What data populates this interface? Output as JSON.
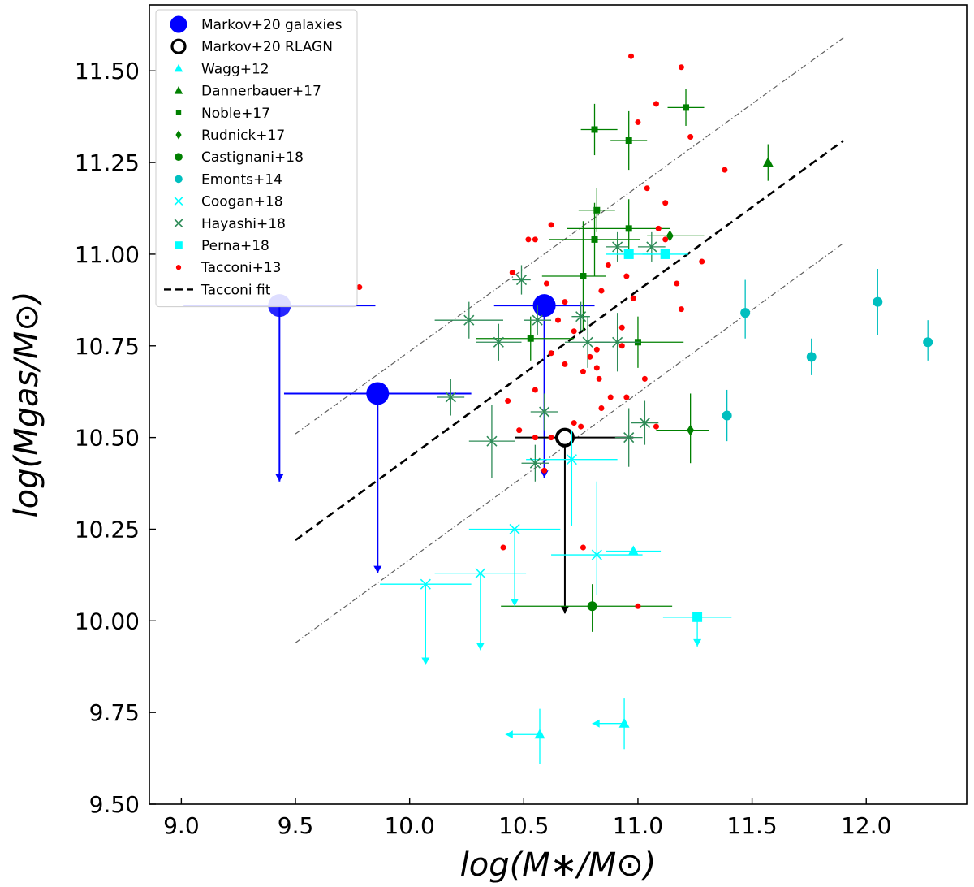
{
  "chart_data": {
    "type": "scatter",
    "xlabel": "log(M∗/M⊙)",
    "ylabel": "log(Mgas/M⊙)",
    "xlim": [
      8.86,
      12.44
    ],
    "ylim": [
      9.5,
      11.68
    ],
    "xticks": [
      9.0,
      9.5,
      10.0,
      10.5,
      11.0,
      11.5,
      12.0
    ],
    "xtick_labels": [
      "9.0",
      "9.5",
      "10.0",
      "10.5",
      "11.0",
      "11.5",
      "12.0"
    ],
    "yticks": [
      9.5,
      9.75,
      10.0,
      10.25,
      10.5,
      10.75,
      11.0,
      11.25,
      11.5
    ],
    "ytick_labels": [
      "9.50",
      "9.75",
      "10.00",
      "10.25",
      "10.50",
      "10.75",
      "11.00",
      "11.25",
      "11.50"
    ],
    "grid": false,
    "legend_position": "top-left",
    "colors": {
      "blue": "#0000ff",
      "green": "#008000",
      "cyan": "#00ffff",
      "teal": "#00bfbf",
      "red": "#ff0000",
      "black": "#000000",
      "gray": "#606060"
    },
    "series": [
      {
        "name": "Markov+20 galaxies",
        "marker": "circle-large",
        "color": "#0000ff",
        "points": [
          {
            "x": 9.43,
            "y": 10.86,
            "xerr": [
              0.42,
              0.42
            ],
            "upper_limit_to": 10.38
          },
          {
            "x": 9.86,
            "y": 10.62,
            "xerr": [
              0.41,
              0.41
            ],
            "upper_limit_to": 10.13
          },
          {
            "x": 10.59,
            "y": 10.86,
            "xerr": [
              0.22,
              0.22
            ],
            "upper_limit_to": 10.39
          }
        ]
      },
      {
        "name": "Markov+20 RLAGN",
        "marker": "circle-open",
        "color": "#000000",
        "points": [
          {
            "x": 10.68,
            "y": 10.5,
            "xerr": [
              0.22,
              0.3
            ],
            "upper_limit_to": 10.02
          }
        ]
      },
      {
        "name": "Wagg+12",
        "marker": "triangle",
        "color": "#00ffff",
        "points": [
          {
            "x": 10.98,
            "y": 10.19,
            "xerr": [
              0.12,
              0.12
            ]
          },
          {
            "x": 10.94,
            "y": 9.72,
            "yerr": [
              0.07,
              0.07
            ],
            "left_arrow_to": 10.8
          },
          {
            "x": 10.57,
            "y": 9.69,
            "yerr": [
              0.08,
              0.07
            ],
            "left_arrow_to": 10.42
          }
        ]
      },
      {
        "name": "Dannerbauer+17",
        "marker": "triangle",
        "color": "#008000",
        "points": [
          {
            "x": 11.57,
            "y": 11.25,
            "yerr": [
              0.05,
              0.05
            ]
          }
        ]
      },
      {
        "name": "Noble+17",
        "marker": "square-small",
        "color": "#008000",
        "points": [
          {
            "x": 10.81,
            "y": 11.34,
            "xerr": [
              0.06,
              0.1
            ],
            "yerr": [
              0.07,
              0.07
            ]
          },
          {
            "x": 10.96,
            "y": 11.31,
            "xerr": [
              0.08,
              0.08
            ],
            "yerr": [
              0.08,
              0.08
            ]
          },
          {
            "x": 11.21,
            "y": 11.4,
            "xerr": [
              0.08,
              0.08
            ],
            "yerr": [
              0.05,
              0.05
            ]
          },
          {
            "x": 10.82,
            "y": 11.12,
            "xerr": [
              0.08,
              0.08
            ],
            "yerr": [
              0.06,
              0.06
            ]
          },
          {
            "x": 10.96,
            "y": 11.07,
            "xerr": [
              0.27,
              0.18
            ],
            "yerr": [
              0.08,
              0.08
            ]
          },
          {
            "x": 10.81,
            "y": 11.04,
            "xerr": [
              0.2,
              0.2
            ],
            "yerr": [
              0.1,
              0.1
            ]
          },
          {
            "x": 10.76,
            "y": 10.94,
            "xerr": [
              0.18,
              0.1
            ],
            "yerr": [
              0.15,
              0.15
            ]
          },
          {
            "x": 10.53,
            "y": 10.77,
            "xerr": [
              0.24,
              0.19
            ],
            "yerr": [
              0.06,
              0.06
            ]
          },
          {
            "x": 11.0,
            "y": 10.76,
            "xerr": [
              0.1,
              0.2
            ],
            "yerr": [
              0.07,
              0.07
            ]
          }
        ]
      },
      {
        "name": "Rudnick+17",
        "marker": "diamond",
        "color": "#008000",
        "points": [
          {
            "x": 11.14,
            "y": 11.05,
            "xerr": [
              0.1,
              0.15
            ]
          },
          {
            "x": 11.23,
            "y": 10.52,
            "xerr": [
              0.15,
              0.08
            ],
            "yerr": [
              0.09,
              0.1
            ]
          }
        ]
      },
      {
        "name": "Castignani+18",
        "marker": "circle",
        "color": "#008000",
        "points": [
          {
            "x": 10.8,
            "y": 10.04,
            "xerr": [
              0.4,
              0.35
            ],
            "yerr": [
              0.07,
              0.06
            ]
          }
        ]
      },
      {
        "name": "Emonts+14",
        "marker": "circle",
        "color": "#00bfbf",
        "points": [
          {
            "x": 11.47,
            "y": 10.84,
            "yerr": [
              0.07,
              0.09
            ]
          },
          {
            "x": 11.39,
            "y": 10.56,
            "yerr": [
              0.07,
              0.07
            ]
          },
          {
            "x": 11.76,
            "y": 10.72,
            "yerr": [
              0.05,
              0.05
            ]
          },
          {
            "x": 12.05,
            "y": 10.87,
            "yerr": [
              0.09,
              0.09
            ]
          },
          {
            "x": 12.27,
            "y": 10.76,
            "yerr": [
              0.05,
              0.06
            ]
          }
        ]
      },
      {
        "name": "Coogan+18",
        "marker": "x",
        "color": "#00ffff",
        "points": [
          {
            "x": 10.07,
            "y": 10.1,
            "xerr": [
              0.2,
              0.2
            ],
            "upper_limit_to": 9.88
          },
          {
            "x": 10.31,
            "y": 10.13,
            "xerr": [
              0.2,
              0.2
            ],
            "upper_limit_to": 9.92
          },
          {
            "x": 10.46,
            "y": 10.25,
            "xerr": [
              0.2,
              0.2
            ],
            "upper_limit_to": 10.04
          },
          {
            "x": 10.71,
            "y": 10.44,
            "xerr": [
              0.2,
              0.2
            ],
            "yerr": [
              0.18,
              0.08
            ]
          },
          {
            "x": 10.82,
            "y": 10.18,
            "xerr": [
              0.2,
              0.2
            ],
            "yerr": [
              0.11,
              0.2
            ]
          }
        ]
      },
      {
        "name": "Hayashi+18",
        "marker": "x",
        "color": "#2e8b57",
        "points": [
          {
            "x": 10.18,
            "y": 10.61,
            "xerr": [
              0.06,
              0.06
            ],
            "yerr": [
              0.05,
              0.05
            ]
          },
          {
            "x": 10.26,
            "y": 10.82,
            "xerr": [
              0.15,
              0.15
            ],
            "yerr": [
              0.05,
              0.05
            ]
          },
          {
            "x": 10.39,
            "y": 10.76,
            "xerr": [
              0.1,
              0.1
            ],
            "yerr": [
              0.05,
              0.05
            ]
          },
          {
            "x": 10.49,
            "y": 10.93,
            "xerr": [
              0.04,
              0.04
            ],
            "yerr": [
              0.04,
              0.04
            ]
          },
          {
            "x": 10.56,
            "y": 10.82,
            "xerr": [
              0.06,
              0.06
            ],
            "yerr": [
              0.04,
              0.04
            ]
          },
          {
            "x": 10.59,
            "y": 10.57,
            "xerr": [
              0.06,
              0.06
            ],
            "yerr": [
              0.05,
              0.05
            ]
          },
          {
            "x": 10.55,
            "y": 10.43,
            "xerr": [
              0.06,
              0.06
            ],
            "yerr": [
              0.05,
              0.05
            ]
          },
          {
            "x": 10.36,
            "y": 10.49,
            "xerr": [
              0.1,
              0.1
            ],
            "yerr": [
              0.1,
              0.1
            ]
          },
          {
            "x": 10.75,
            "y": 10.83,
            "xerr": [
              0.04,
              0.04
            ],
            "yerr": [
              0.04,
              0.04
            ]
          },
          {
            "x": 10.78,
            "y": 10.76,
            "xerr": [
              0.1,
              0.1
            ],
            "yerr": [
              0.07,
              0.07
            ]
          },
          {
            "x": 10.91,
            "y": 10.76,
            "xerr": [
              0.1,
              0.1
            ],
            "yerr": [
              0.08,
              0.08
            ]
          },
          {
            "x": 10.96,
            "y": 10.5,
            "xerr": [
              0.06,
              0.06
            ],
            "yerr": [
              0.08,
              0.08
            ]
          },
          {
            "x": 11.03,
            "y": 10.54,
            "xerr": [
              0.06,
              0.06
            ],
            "yerr": [
              0.06,
              0.06
            ]
          },
          {
            "x": 10.91,
            "y": 11.02,
            "xerr": [
              0.05,
              0.05
            ],
            "yerr": [
              0.04,
              0.04
            ]
          },
          {
            "x": 11.06,
            "y": 11.02,
            "xerr": [
              0.06,
              0.06
            ],
            "yerr": [
              0.04,
              0.04
            ]
          }
        ]
      },
      {
        "name": "Perna+18",
        "marker": "square",
        "color": "#00ffff",
        "points": [
          {
            "x": 10.96,
            "y": 11.0,
            "xerr": [
              0.1,
              0.1
            ]
          },
          {
            "x": 11.12,
            "y": 11.0,
            "xerr": [
              0.1,
              0.1
            ]
          },
          {
            "x": 11.26,
            "y": 10.01,
            "xerr": [
              0.15,
              0.15
            ],
            "upper_limit_to": 9.93
          }
        ]
      },
      {
        "name": "Tacconi+13",
        "marker": "dot",
        "color": "#ff0000",
        "points": [
          {
            "x": 9.78,
            "y": 10.91
          },
          {
            "x": 10.45,
            "y": 10.95
          },
          {
            "x": 10.52,
            "y": 11.04
          },
          {
            "x": 10.55,
            "y": 11.04
          },
          {
            "x": 10.62,
            "y": 11.08
          },
          {
            "x": 10.6,
            "y": 10.92
          },
          {
            "x": 10.68,
            "y": 10.87
          },
          {
            "x": 10.65,
            "y": 10.82
          },
          {
            "x": 10.72,
            "y": 10.79
          },
          {
            "x": 10.62,
            "y": 10.73
          },
          {
            "x": 10.68,
            "y": 10.7
          },
          {
            "x": 10.76,
            "y": 10.68
          },
          {
            "x": 10.79,
            "y": 10.72
          },
          {
            "x": 10.82,
            "y": 10.74
          },
          {
            "x": 10.82,
            "y": 10.69
          },
          {
            "x": 10.83,
            "y": 10.66
          },
          {
            "x": 10.55,
            "y": 10.63
          },
          {
            "x": 10.43,
            "y": 10.6
          },
          {
            "x": 10.62,
            "y": 10.5
          },
          {
            "x": 10.48,
            "y": 10.52
          },
          {
            "x": 10.75,
            "y": 10.53
          },
          {
            "x": 10.72,
            "y": 10.54
          },
          {
            "x": 10.55,
            "y": 10.5
          },
          {
            "x": 10.87,
            "y": 10.97
          },
          {
            "x": 10.95,
            "y": 10.94
          },
          {
            "x": 10.98,
            "y": 10.88
          },
          {
            "x": 10.84,
            "y": 10.9
          },
          {
            "x": 10.93,
            "y": 10.75
          },
          {
            "x": 10.93,
            "y": 10.8
          },
          {
            "x": 10.88,
            "y": 10.61
          },
          {
            "x": 10.95,
            "y": 10.61
          },
          {
            "x": 11.03,
            "y": 10.66
          },
          {
            "x": 11.0,
            "y": 11.36
          },
          {
            "x": 10.97,
            "y": 11.54
          },
          {
            "x": 11.08,
            "y": 11.41
          },
          {
            "x": 11.19,
            "y": 11.51
          },
          {
            "x": 11.23,
            "y": 11.32
          },
          {
            "x": 11.09,
            "y": 11.07
          },
          {
            "x": 11.04,
            "y": 11.18
          },
          {
            "x": 11.12,
            "y": 11.14
          },
          {
            "x": 11.12,
            "y": 11.04
          },
          {
            "x": 11.17,
            "y": 10.92
          },
          {
            "x": 11.19,
            "y": 10.85
          },
          {
            "x": 11.28,
            "y": 10.98
          },
          {
            "x": 11.38,
            "y": 11.23
          },
          {
            "x": 11.08,
            "y": 10.53
          },
          {
            "x": 10.84,
            "y": 10.58
          },
          {
            "x": 10.59,
            "y": 10.41
          },
          {
            "x": 10.76,
            "y": 10.2
          },
          {
            "x": 10.41,
            "y": 10.2
          },
          {
            "x": 11.0,
            "y": 10.04
          }
        ]
      }
    ],
    "lines": [
      {
        "name": "Tacconi fit",
        "style": "dashed",
        "color": "#000000",
        "x": [
          9.5,
          11.9
        ],
        "y": [
          10.22,
          11.31
        ]
      },
      {
        "name": "",
        "style": "dashdot",
        "color": "#606060",
        "x": [
          9.5,
          11.9
        ],
        "y": [
          10.51,
          11.59
        ]
      },
      {
        "name": "",
        "style": "dashdot",
        "color": "#606060",
        "x": [
          9.5,
          11.9
        ],
        "y": [
          9.94,
          11.03
        ]
      }
    ]
  }
}
